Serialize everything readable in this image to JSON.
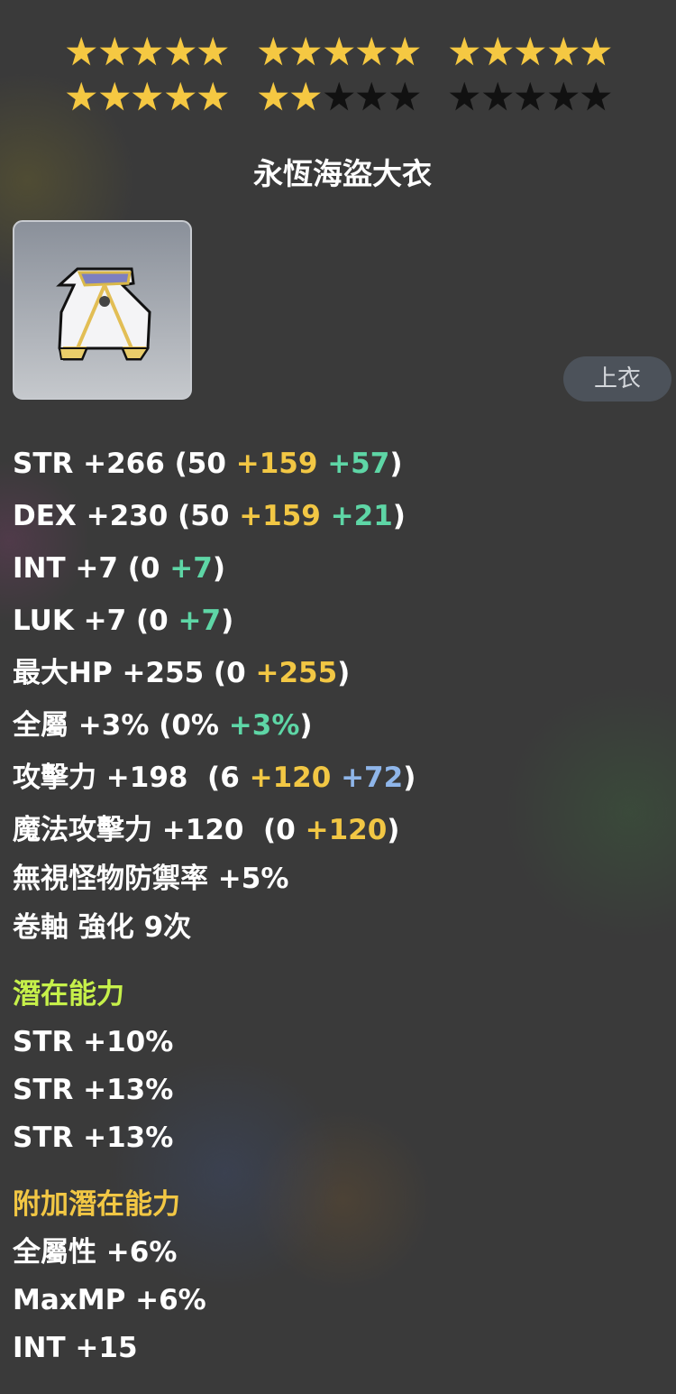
{
  "stars": {
    "total": 30,
    "filled": 22,
    "per_group": 5,
    "groups_per_row": 3,
    "filled_color": "#f5c842",
    "empty_color": "#111111"
  },
  "item": {
    "name": "永恆海盜大衣",
    "icon": "pirate-coat-icon",
    "category": "上衣"
  },
  "colors": {
    "white": "#ffffff",
    "gold": "#f2c744",
    "green": "#5ed6a6",
    "blue": "#8fb6ea",
    "potential": "#c6f04a",
    "additional": "#f2c744"
  },
  "stats": [
    [
      {
        "t": "STR +266 (50 ",
        "c": "white"
      },
      {
        "t": "+159",
        "c": "gold"
      },
      {
        "t": " ",
        "c": "white"
      },
      {
        "t": "+57",
        "c": "green"
      },
      {
        "t": ")",
        "c": "white"
      }
    ],
    [
      {
        "t": "DEX +230 (50 ",
        "c": "white"
      },
      {
        "t": "+159",
        "c": "gold"
      },
      {
        "t": " ",
        "c": "white"
      },
      {
        "t": "+21",
        "c": "green"
      },
      {
        "t": ")",
        "c": "white"
      }
    ],
    [
      {
        "t": "INT +7 (0 ",
        "c": "white"
      },
      {
        "t": "+7",
        "c": "green"
      },
      {
        "t": ")",
        "c": "white"
      }
    ],
    [
      {
        "t": "LUK +7 (0 ",
        "c": "white"
      },
      {
        "t": "+7",
        "c": "green"
      },
      {
        "t": ")",
        "c": "white"
      }
    ],
    [
      {
        "t": "最大HP +255 (0 ",
        "c": "white"
      },
      {
        "t": "+255",
        "c": "gold"
      },
      {
        "t": ")",
        "c": "white"
      }
    ],
    [
      {
        "t": "全屬 +3% (0% ",
        "c": "white"
      },
      {
        "t": "+3%",
        "c": "green"
      },
      {
        "t": ")",
        "c": "white"
      }
    ],
    [
      {
        "t": "攻擊力 +198  (6 ",
        "c": "white"
      },
      {
        "t": "+120",
        "c": "gold"
      },
      {
        "t": " ",
        "c": "white"
      },
      {
        "t": "+72",
        "c": "blue"
      },
      {
        "t": ")",
        "c": "white"
      }
    ],
    [
      {
        "t": "魔法攻擊力 +120  (0 ",
        "c": "white"
      },
      {
        "t": "+120",
        "c": "gold"
      },
      {
        "t": ")",
        "c": "white"
      }
    ],
    [
      {
        "t": "無視怪物防禦率 +5%",
        "c": "white"
      }
    ],
    [
      {
        "t": "卷軸 強化 9次",
        "c": "white"
      }
    ]
  ],
  "potential": {
    "title": "潛在能力",
    "lines": [
      "STR +10%",
      "STR +13%",
      "STR +13%"
    ]
  },
  "additional_potential": {
    "title": "附加潛在能力",
    "lines": [
      "全屬性 +6%",
      "MaxMP +6%",
      "INT +15"
    ]
  }
}
